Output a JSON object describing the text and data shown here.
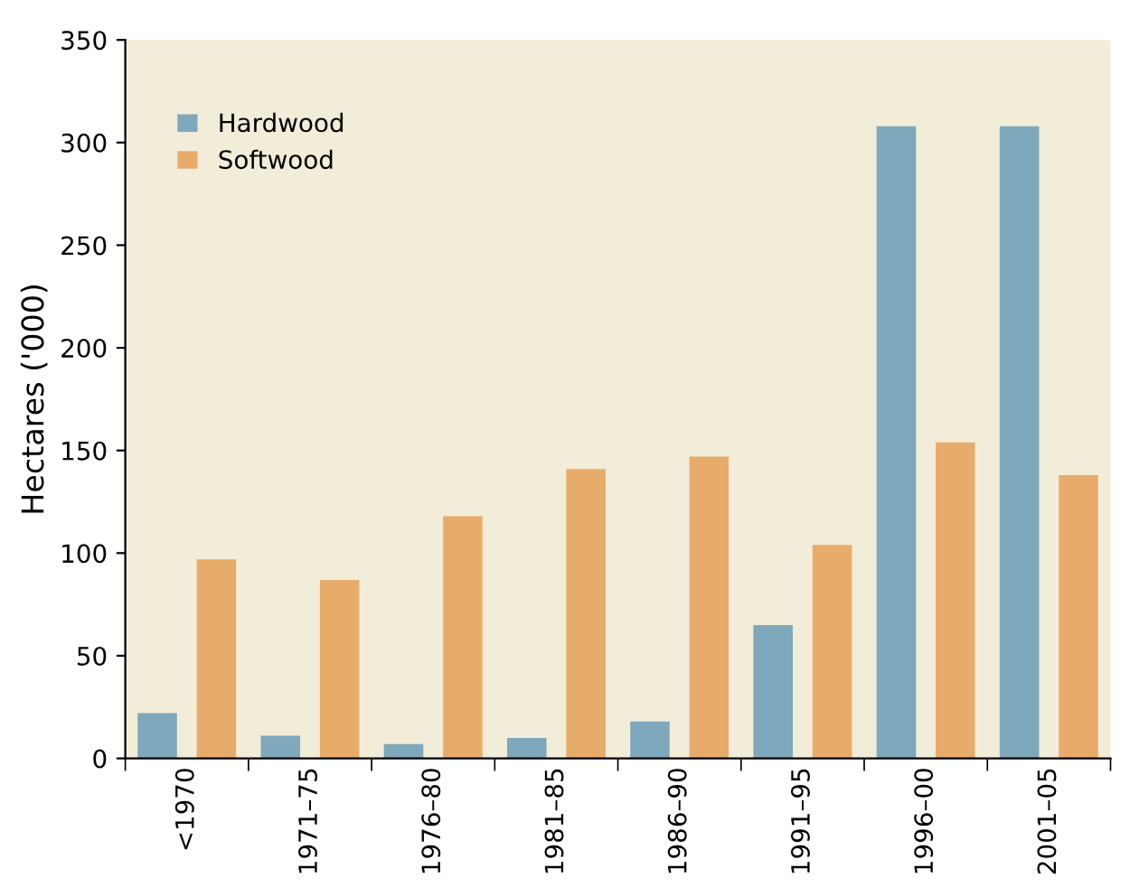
{
  "chart_data": {
    "type": "bar",
    "ylabel": "Hectares ('000)",
    "categories": [
      "<1970",
      "1971–75",
      "1976–80",
      "1981–85",
      "1986–90",
      "1991–95",
      "1996–00",
      "2001–05"
    ],
    "series": [
      {
        "name": "Hardwood",
        "color": "#7fa8bc",
        "values": [
          22,
          11,
          7,
          10,
          18,
          65,
          308,
          308
        ]
      },
      {
        "name": "Softwood",
        "color": "#e8ac6a",
        "values": [
          97,
          87,
          118,
          141,
          147,
          104,
          154,
          138
        ]
      }
    ],
    "ylim": [
      0,
      350
    ],
    "yticks": [
      0,
      50,
      100,
      150,
      200,
      250,
      300,
      350
    ],
    "grid": false,
    "legend": "top left"
  }
}
